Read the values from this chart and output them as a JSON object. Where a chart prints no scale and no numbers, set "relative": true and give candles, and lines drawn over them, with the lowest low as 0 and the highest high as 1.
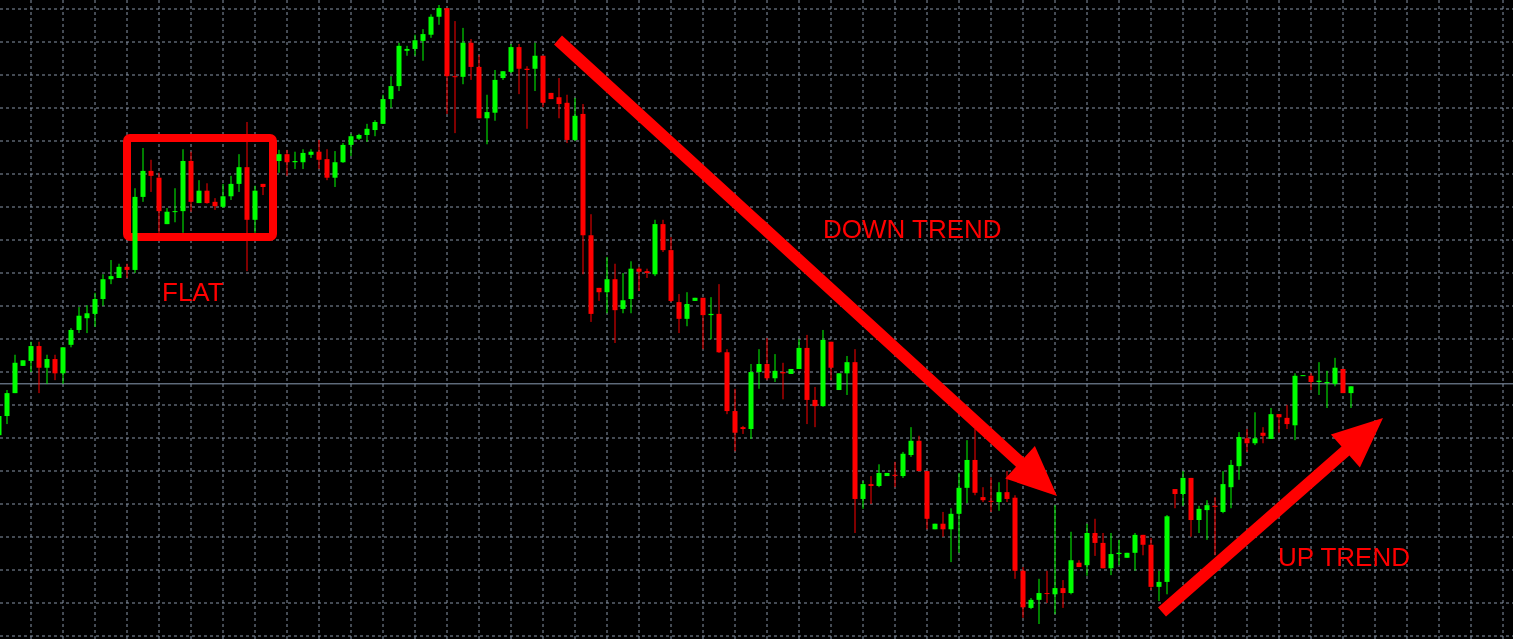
{
  "chart_data": {
    "type": "candlestick",
    "relative": true,
    "grid": true,
    "categories": [
      null,
      null,
      null,
      null,
      null,
      null,
      null,
      null,
      null,
      null,
      null,
      null,
      null,
      null,
      null,
      null,
      null,
      null,
      null,
      null,
      null,
      null,
      null,
      null,
      null,
      null,
      null,
      null,
      null,
      null,
      null,
      null,
      null,
      null,
      null,
      null,
      null,
      null,
      null,
      null,
      null,
      null,
      null,
      null,
      null,
      null,
      null,
      null,
      null,
      null,
      null,
      null,
      null,
      null,
      null,
      null,
      null,
      null,
      null,
      null,
      null,
      null,
      null,
      null,
      null,
      null,
      null,
      null,
      null,
      null,
      null,
      null,
      null,
      null,
      null,
      null,
      null,
      null,
      null,
      null,
      null,
      null,
      null,
      null,
      null,
      null,
      null,
      null,
      null,
      null,
      null,
      null,
      null,
      null,
      null,
      null,
      null,
      null,
      null,
      null,
      null,
      null,
      null,
      null,
      null,
      null,
      null,
      null,
      null,
      null,
      null,
      null,
      null,
      null,
      null,
      null,
      null,
      null,
      null,
      null,
      null,
      null,
      null,
      null,
      null,
      null,
      null,
      null,
      null,
      null,
      null,
      null,
      null,
      null,
      null,
      null,
      null,
      null,
      null,
      null,
      null,
      null,
      null,
      null,
      null,
      null,
      null,
      null,
      null,
      null,
      null,
      null,
      null,
      null,
      null,
      null,
      null,
      null,
      null,
      null,
      null,
      null,
      null,
      null,
      null,
      null,
      null,
      null,
      null,
      null
    ],
    "ohlc": [
      [
        0.305,
        0.339,
        0.302,
        0.336
      ],
      [
        0.336,
        0.378,
        0.323,
        0.373
      ],
      [
        0.373,
        0.435,
        0.373,
        0.422
      ],
      [
        0.417,
        0.426,
        0.417,
        0.426
      ],
      [
        0.425,
        0.456,
        0.407,
        0.449
      ],
      [
        0.449,
        0.456,
        0.373,
        0.414
      ],
      [
        0.414,
        0.435,
        0.388,
        0.428
      ],
      [
        0.428,
        0.435,
        0.394,
        0.405
      ],
      [
        0.405,
        0.447,
        0.388,
        0.447
      ],
      [
        0.451,
        0.478,
        0.447,
        0.475
      ],
      [
        0.475,
        0.512,
        0.47,
        0.498
      ],
      [
        0.494,
        0.515,
        0.47,
        0.502
      ],
      [
        0.501,
        0.535,
        0.48,
        0.525
      ],
      [
        0.525,
        0.565,
        0.514,
        0.557
      ],
      [
        0.557,
        0.588,
        0.549,
        0.562
      ],
      [
        0.559,
        0.582,
        0.559,
        0.577
      ],
      [
        0.577,
        0.582,
        0.559,
        0.572
      ],
      [
        0.572,
        0.704,
        0.567,
        0.69
      ],
      [
        0.69,
        0.769,
        0.682,
        0.732
      ],
      [
        0.732,
        0.75,
        0.698,
        0.724
      ],
      [
        0.721,
        0.729,
        0.632,
        0.667
      ],
      [
        0.646,
        0.672,
        0.646,
        0.666
      ],
      [
        0.666,
        0.704,
        0.649,
        0.667
      ],
      [
        0.667,
        0.767,
        0.632,
        0.748
      ],
      [
        0.748,
        0.763,
        0.666,
        0.682
      ],
      [
        0.68,
        0.717,
        0.68,
        0.7
      ],
      [
        0.7,
        0.712,
        0.679,
        0.68
      ],
      [
        0.682,
        0.688,
        0.669,
        0.675
      ],
      [
        0.674,
        0.711,
        0.672,
        0.691
      ],
      [
        0.691,
        0.724,
        0.685,
        0.711
      ],
      [
        0.711,
        0.759,
        0.698,
        0.738
      ],
      [
        0.738,
        0.811,
        0.57,
        0.653
      ],
      [
        0.653,
        0.708,
        0.632,
        0.7
      ],
      [
        0.711,
        0.711,
        0.693,
        0.706
      ],
      null,
      [
        0.748,
        0.766,
        0.729,
        0.759
      ],
      [
        0.759,
        0.766,
        0.724,
        0.746
      ],
      [
        0.746,
        0.763,
        0.735,
        0.748
      ],
      [
        0.746,
        0.767,
        0.735,
        0.761
      ],
      [
        0.758,
        0.767,
        0.753,
        0.763
      ],
      [
        0.763,
        0.782,
        0.735,
        0.75
      ],
      [
        0.751,
        0.767,
        0.717,
        0.721
      ],
      [
        0.721,
        0.764,
        0.706,
        0.746
      ],
      [
        0.746,
        0.777,
        0.745,
        0.774
      ],
      [
        0.774,
        0.792,
        0.756,
        0.788
      ],
      [
        0.784,
        0.792,
        0.782,
        0.79
      ],
      [
        0.79,
        0.808,
        0.779,
        0.8
      ],
      [
        0.798,
        0.814,
        0.788,
        0.811
      ],
      [
        0.808,
        0.855,
        0.808,
        0.848
      ],
      [
        0.848,
        0.885,
        0.834,
        0.869
      ],
      [
        0.869,
        0.939,
        0.861,
        0.934
      ],
      [
        0.926,
        0.934,
        0.918,
        0.929
      ],
      [
        0.929,
        0.952,
        0.918,
        0.943
      ],
      [
        0.942,
        0.961,
        0.91,
        0.953
      ],
      [
        0.952,
        0.985,
        0.947,
        0.981
      ],
      [
        0.981,
        1,
        0.968,
        0.995
      ],
      [
        0.995,
        0.995,
        0.824,
        0.885
      ],
      [
        0.885,
        0.974,
        0.793,
        0.884
      ],
      [
        0.884,
        0.963,
        0.872,
        0.939
      ],
      [
        0.939,
        0.945,
        0.879,
        0.9
      ],
      [
        0.9,
        0.919,
        0.817,
        0.817
      ],
      [
        0.817,
        0.855,
        0.775,
        0.827
      ],
      [
        0.826,
        0.895,
        0.813,
        0.879
      ],
      [
        0.882,
        0.893,
        0.879,
        0.893
      ],
      [
        0.892,
        0.937,
        0.89,
        0.932
      ],
      [
        0.932,
        0.937,
        0.856,
        0.897
      ],
      [
        0.897,
        0.901,
        0.8,
        0.895
      ],
      [
        0.897,
        0.939,
        0.861,
        0.918
      ],
      [
        0.918,
        0.918,
        0.835,
        0.842
      ],
      [
        0.858,
        0.858,
        0.848,
        0.848
      ],
      [
        0.851,
        0.882,
        0.817,
        0.84
      ],
      [
        0.842,
        0.855,
        0.777,
        0.782
      ],
      [
        0.782,
        0.85,
        0.78,
        0.821
      ],
      [
        0.824,
        0.84,
        0.565,
        0.628
      ],
      [
        0.628,
        0.662,
        0.488,
        0.501
      ],
      [
        0.543,
        0.543,
        0.522,
        0.536
      ],
      [
        0.536,
        0.593,
        0.502,
        0.557
      ],
      [
        0.557,
        0.582,
        0.454,
        0.507
      ],
      [
        0.509,
        0.567,
        0.502,
        0.523
      ],
      [
        0.525,
        0.586,
        0.502,
        0.574
      ],
      [
        0.574,
        0.577,
        0.538,
        0.569
      ],
      [
        0.57,
        0.574,
        0.559,
        0.567
      ],
      [
        0.565,
        0.653,
        0.562,
        0.646
      ],
      [
        0.646,
        0.653,
        0.601,
        0.604
      ],
      [
        0.604,
        0.625,
        0.52,
        0.522
      ],
      [
        0.52,
        0.533,
        0.47,
        0.493
      ],
      [
        0.493,
        0.536,
        0.481,
        0.517
      ],
      [
        0.522,
        0.527,
        0.522,
        0.527
      ],
      [
        0.527,
        0.527,
        0.444,
        0.499
      ],
      [
        0.499,
        0.528,
        0.46,
        0.501
      ],
      [
        0.501,
        0.549,
        0.438,
        0.439
      ],
      [
        0.439,
        0.444,
        0.339,
        0.344
      ],
      [
        0.344,
        0.38,
        0.279,
        0.309
      ],
      [
        0.318,
        0.32,
        0.307,
        0.315
      ],
      [
        0.315,
        0.42,
        0.299,
        0.407
      ],
      [
        0.407,
        0.444,
        0.38,
        0.42
      ],
      [
        0.42,
        0.462,
        0.394,
        0.397
      ],
      [
        0.397,
        0.436,
        0.391,
        0.409
      ],
      [
        0.407,
        0.422,
        0.363,
        0.405
      ],
      [
        0.404,
        0.412,
        0.404,
        0.412
      ],
      [
        0.412,
        0.46,
        0.412,
        0.446
      ],
      [
        0.446,
        0.467,
        0.323,
        0.362
      ],
      [
        0.362,
        0.383,
        0.318,
        0.352
      ],
      [
        0.352,
        0.475,
        0.351,
        0.459
      ],
      [
        0.456,
        0.456,
        0.394,
        0.414
      ],
      [
        0.378,
        0.405,
        0.378,
        0.405
      ],
      [
        0.405,
        0.433,
        0.37,
        0.423
      ],
      [
        0.423,
        0.444,
        0.147,
        0.202
      ],
      [
        0.202,
        0.231,
        0.186,
        0.226
      ],
      [
        0.226,
        0.239,
        0.194,
        0.223
      ],
      [
        0.223,
        0.258,
        0.221,
        0.244
      ],
      [
        0.239,
        0.244,
        0.239,
        0.244
      ],
      [
        0.241,
        0.262,
        0.221,
        0.241
      ],
      [
        0.239,
        0.278,
        0.236,
        0.275
      ],
      [
        0.273,
        0.318,
        0.27,
        0.296
      ],
      [
        0.296,
        0.304,
        0.247,
        0.247
      ],
      [
        0.247,
        0.247,
        0.153,
        0.17
      ],
      [
        0.153,
        0.162,
        0.153,
        0.162
      ],
      [
        0.162,
        0.181,
        0.141,
        0.153
      ],
      [
        0.153,
        0.187,
        0.1,
        0.178
      ],
      [
        0.178,
        0.244,
        0.115,
        0.22
      ],
      [
        0.22,
        0.297,
        0.195,
        0.265
      ],
      [
        0.265,
        0.315,
        0.208,
        0.212
      ],
      [
        0.205,
        0.221,
        0.197,
        0.2
      ],
      [
        0.199,
        0.237,
        0.181,
        0.199
      ],
      [
        0.197,
        0.229,
        0.183,
        0.213
      ],
      [
        0.213,
        0.247,
        0.197,
        0.202
      ],
      [
        0.204,
        0.208,
        0.073,
        0.086
      ],
      [
        0.086,
        0.092,
        0.01,
        0.027
      ],
      [
        0.026,
        0.042,
        0.024,
        0.039
      ],
      [
        0.039,
        0.073,
        0,
        0.05
      ],
      [
        0.05,
        0.086,
        0.034,
        0.05
      ],
      [
        0.048,
        0.192,
        0.016,
        0.058
      ],
      [
        0.058,
        0.071,
        0.026,
        0.05
      ],
      [
        0.05,
        0.149,
        0.048,
        0.103
      ],
      [
        0.099,
        0.103,
        0.092,
        0.092
      ],
      [
        0.095,
        0.162,
        0.078,
        0.147
      ],
      [
        0.147,
        0.17,
        0.11,
        0.131
      ],
      [
        0.131,
        0.147,
        0.09,
        0.09
      ],
      [
        0.09,
        0.147,
        0.079,
        0.113
      ],
      [
        0.113,
        0.136,
        0.095,
        0.115
      ],
      [
        0.107,
        0.115,
        0.107,
        0.115
      ],
      [
        0.115,
        0.147,
        0.086,
        0.144
      ],
      [
        0.144,
        0.144,
        0.111,
        0.128
      ],
      [
        0.128,
        0.139,
        0.055,
        0.06
      ],
      [
        0.06,
        0.086,
        0.037,
        0.068
      ],
      [
        0.068,
        0.176,
        0.048,
        0.174
      ],
      [
        0.218,
        0.218,
        0.187,
        0.21
      ],
      [
        0.21,
        0.247,
        0.191,
        0.236
      ],
      [
        0.236,
        0.236,
        0.141,
        0.168
      ],
      [
        0.168,
        0.191,
        0.147,
        0.186
      ],
      [
        0.184,
        0.2,
        0.136,
        0.192
      ],
      [
        0.191,
        0.205,
        0.111,
        0.191
      ],
      [
        0.181,
        0.247,
        0.179,
        0.226
      ],
      [
        0.221,
        0.265,
        0.187,
        0.257
      ],
      [
        0.255,
        0.31,
        0.233,
        0.302
      ],
      [
        0.3,
        0.315,
        0.278,
        0.292
      ],
      [
        0.292,
        0.342,
        0.289,
        0.3
      ],
      [
        0.309,
        0.318,
        0.292,
        0.304
      ],
      [
        0.299,
        0.349,
        0.299,
        0.339
      ],
      [
        0.339,
        0.339,
        0.309,
        0.334
      ],
      [
        0.333,
        0.354,
        0.315,
        0.323
      ],
      [
        0.321,
        0.405,
        0.297,
        0.401
      ],
      [
        0.401,
        0.402,
        0.401,
        0.402
      ],
      [
        0.401,
        0.405,
        0.378,
        0.391
      ],
      [
        0.391,
        0.423,
        0.37,
        0.393
      ],
      [
        0.389,
        0.409,
        0.349,
        0.391
      ],
      [
        0.388,
        0.43,
        0.384,
        0.414
      ],
      [
        0.412,
        0.412,
        0.373,
        0.373
      ],
      [
        0.373,
        0.384,
        0.349,
        0.384
      ]
    ],
    "colors": [
      "#00ff00",
      "#00ff00",
      "#00ff00",
      "#00ff00",
      "#00ff00",
      "#ff0000",
      "#00ff00",
      "#ff0000",
      "#00ff00",
      "#00ff00",
      "#00ff00",
      "#00ff00",
      "#00ff00",
      "#00ff00",
      "#00ff00",
      "#00ff00",
      "#ff0000",
      "#00ff00",
      "#00ff00",
      "#ff0000",
      "#ff0000",
      "#00ff00",
      "#00ff00",
      "#00ff00",
      "#ff0000",
      "#00ff00",
      "#ff0000",
      "#ff0000",
      "#00ff00",
      "#00ff00",
      "#00ff00",
      "#ff0000",
      "#00ff00",
      "#ff0000",
      null,
      "#00ff00",
      "#ff0000",
      "#00ff00",
      "#00ff00",
      "#00ff00",
      "#ff0000",
      "#ff0000",
      "#00ff00",
      "#00ff00",
      "#00ff00",
      "#00ff00",
      "#00ff00",
      "#00ff00",
      "#00ff00",
      "#00ff00",
      "#00ff00",
      "#00ff00",
      "#00ff00",
      "#00ff00",
      "#00ff00",
      "#00ff00",
      "#ff0000",
      "#ff0000",
      "#00ff00",
      "#ff0000",
      "#ff0000",
      "#00ff00",
      "#00ff00",
      "#00ff00",
      "#00ff00",
      "#ff0000",
      "#ff0000",
      "#00ff00",
      "#ff0000",
      "#ff0000",
      "#ff0000",
      "#ff0000",
      "#00ff00",
      "#ff0000",
      "#ff0000",
      "#ff0000",
      "#00ff00",
      "#ff0000",
      "#00ff00",
      "#00ff00",
      "#ff0000",
      "#ff0000",
      "#00ff00",
      "#ff0000",
      "#ff0000",
      "#ff0000",
      "#00ff00",
      "#00ff00",
      "#ff0000",
      "#00ff00",
      "#ff0000",
      "#ff0000",
      "#ff0000",
      "#ff0000",
      "#00ff00",
      "#00ff00",
      "#ff0000",
      "#00ff00",
      "#ff0000",
      "#00ff00",
      "#00ff00",
      "#ff0000",
      "#ff0000",
      "#00ff00",
      "#ff0000",
      "#00ff00",
      "#00ff00",
      "#ff0000",
      "#00ff00",
      "#ff0000",
      "#00ff00",
      "#00ff00",
      "#ff0000",
      "#00ff00",
      "#00ff00",
      "#ff0000",
      "#ff0000",
      "#00ff00",
      "#ff0000",
      "#00ff00",
      "#00ff00",
      "#00ff00",
      "#ff0000",
      "#ff0000",
      "#ff0000",
      "#00ff00",
      "#ff0000",
      "#ff0000",
      "#ff0000",
      "#00ff00",
      "#00ff00",
      "#ff0000",
      "#00ff00",
      "#ff0000",
      "#00ff00",
      "#ff0000",
      "#00ff00",
      "#ff0000",
      "#ff0000",
      "#00ff00",
      "#00ff00",
      "#00ff00",
      "#00ff00",
      "#ff0000",
      "#ff0000",
      "#00ff00",
      "#00ff00",
      "#ff0000",
      "#00ff00",
      "#ff0000",
      "#00ff00",
      "#00ff00",
      "#ff0000",
      "#00ff00",
      "#00ff00",
      "#00ff00",
      "#ff0000",
      "#00ff00",
      "#ff0000",
      "#00ff00",
      "#ff0000",
      "#ff0000",
      "#00ff00",
      "#00ff00",
      "#ff0000",
      "#00ff00",
      "#00ff00",
      "#00ff00",
      "#ff0000",
      "#00ff00"
    ],
    "ref_lines": [
      {
        "axis": "y",
        "value": 0.388,
        "color": "#8a9bb2",
        "line_style": "solid"
      }
    ],
    "annotations": [
      "FLAT",
      "DOWN TREND",
      "UP TREND"
    ]
  }
}
